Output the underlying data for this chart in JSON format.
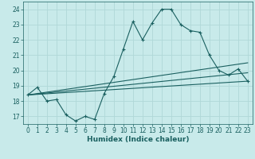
{
  "title": "",
  "xlabel": "Humidex (Indice chaleur)",
  "background_color": "#c8eaea",
  "grid_color": "#b0d8d8",
  "line_color": "#1a6060",
  "xlim": [
    -0.5,
    23.5
  ],
  "ylim": [
    16.5,
    24.5
  ],
  "xticks": [
    0,
    1,
    2,
    3,
    4,
    5,
    6,
    7,
    8,
    9,
    10,
    11,
    12,
    13,
    14,
    15,
    16,
    17,
    18,
    19,
    20,
    21,
    22,
    23
  ],
  "yticks": [
    17,
    18,
    19,
    20,
    21,
    22,
    23,
    24
  ],
  "line1_x": [
    0,
    1,
    2,
    3,
    4,
    5,
    6,
    7,
    8,
    9,
    10,
    11,
    12,
    13,
    14,
    15,
    16,
    17,
    18,
    19,
    20,
    21,
    22,
    23
  ],
  "line1_y": [
    18.4,
    18.9,
    18.0,
    18.1,
    17.1,
    16.7,
    17.0,
    16.8,
    18.5,
    19.6,
    21.4,
    23.2,
    22.0,
    23.1,
    24.0,
    24.0,
    23.0,
    22.6,
    22.5,
    21.0,
    20.0,
    19.7,
    20.1,
    19.3
  ],
  "line2_x": [
    0,
    23
  ],
  "line2_y": [
    18.4,
    19.3
  ],
  "line3_x": [
    0,
    23
  ],
  "line3_y": [
    18.4,
    20.5
  ],
  "line4_x": [
    0,
    23
  ],
  "line4_y": [
    18.4,
    19.85
  ]
}
